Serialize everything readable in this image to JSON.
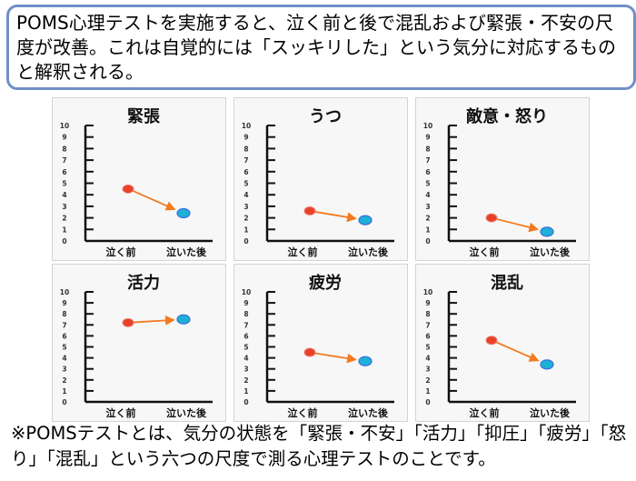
{
  "header": {
    "text": "POMS心理テストを実施すると、泣く前と後で混乱および緊張・不安の尺度が改善。これは自覚的には「スッキリした」という気分に対応するものと解釈される。"
  },
  "footer": {
    "text": "※POMSテストとは、気分の状態を「緊張・不安」「活力」「抑圧」「疲労」「怒り」「混乱」という六つの尺度で測る心理テストのことです。"
  },
  "colors": {
    "before": "#e8412a",
    "after": "#1fb0d8",
    "arrow": "#f47a1f",
    "border": "#6f8fc7"
  },
  "chart_data": [
    {
      "type": "line",
      "title": "緊張",
      "categories": [
        "泣く前",
        "泣いた後"
      ],
      "values": [
        4.5,
        2.4
      ],
      "ylim": [
        0,
        10
      ],
      "yticks": [
        "0",
        "1",
        "2",
        "3",
        "4",
        "5",
        "6",
        "7",
        "8",
        "9",
        "10"
      ]
    },
    {
      "type": "line",
      "title": "うつ",
      "categories": [
        "泣く前",
        "泣いた後"
      ],
      "values": [
        2.6,
        1.8
      ],
      "ylim": [
        0,
        10
      ],
      "yticks": [
        "0",
        "1",
        "2",
        "3",
        "4",
        "5",
        "6",
        "7",
        "8",
        "9",
        "10"
      ]
    },
    {
      "type": "line",
      "title": "敵意・怒り",
      "categories": [
        "泣く前",
        "泣いた後"
      ],
      "values": [
        2.0,
        0.8
      ],
      "ylim": [
        0,
        10
      ],
      "yticks": [
        "0",
        "1",
        "2",
        "3",
        "4",
        "5",
        "6",
        "7",
        "8",
        "9",
        "10"
      ]
    },
    {
      "type": "line",
      "title": "活力",
      "categories": [
        "泣く前",
        "泣いた後"
      ],
      "values": [
        7.2,
        7.5
      ],
      "ylim": [
        0,
        10
      ],
      "yticks": [
        "0",
        "1",
        "2",
        "3",
        "4",
        "5",
        "6",
        "7",
        "8",
        "9",
        "10"
      ]
    },
    {
      "type": "line",
      "title": "疲労",
      "categories": [
        "泣く前",
        "泣いた後"
      ],
      "values": [
        4.5,
        3.7
      ],
      "ylim": [
        0,
        10
      ],
      "yticks": [
        "0",
        "1",
        "2",
        "3",
        "4",
        "5",
        "6",
        "7",
        "8",
        "9",
        "10"
      ]
    },
    {
      "type": "line",
      "title": "混乱",
      "categories": [
        "泣く前",
        "泣いた後"
      ],
      "values": [
        5.6,
        3.4
      ],
      "ylim": [
        0,
        10
      ],
      "yticks": [
        "0",
        "1",
        "2",
        "3",
        "4",
        "5",
        "6",
        "7",
        "8",
        "9",
        "10"
      ]
    }
  ]
}
